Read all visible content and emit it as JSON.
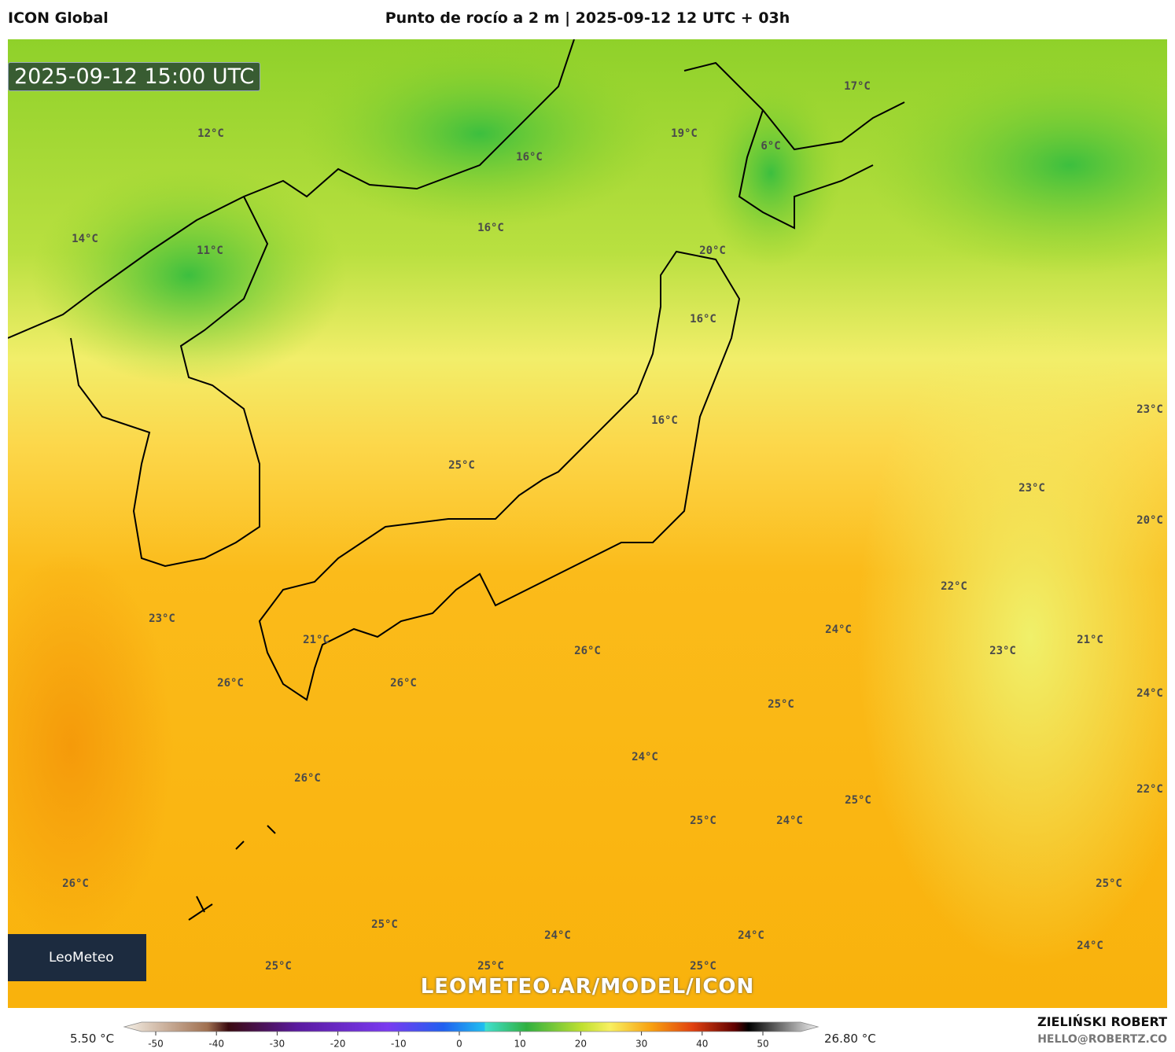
{
  "header": {
    "model": "ICON Global",
    "title": "Punto de rocío a 2 m | 2025-09-12 12 UTC + 03h"
  },
  "timestamp": "2025-09-12 15:00 UTC",
  "map_labels": [
    "17°C",
    "19°C",
    "6°C",
    "12°C",
    "16°C",
    "16°C",
    "14°C",
    "11°C",
    "20°C",
    "16°C",
    "23°C",
    "16°C",
    "25°C",
    "23°C",
    "20°C",
    "22°C",
    "23°C",
    "24°C",
    "21°C",
    "26°C",
    "23°C",
    "21°C",
    "26°C",
    "26°C",
    "24°C",
    "25°C",
    "24°C",
    "26°C",
    "22°C",
    "25°C",
    "25°C",
    "24°C",
    "26°C",
    "25°C",
    "25°C",
    "24°C",
    "24°C",
    "24°C",
    "25°C",
    "25°C",
    "25°C"
  ],
  "logo": "LeoMeteo",
  "watermark": "LEOMETEO.AR/MODEL/ICON",
  "colorbar": {
    "min_label": "5.50 °C",
    "max_label": "26.80 °C",
    "ticks": [
      -50,
      -40,
      -30,
      -20,
      -10,
      0,
      10,
      20,
      30,
      40,
      50
    ]
  },
  "credits": {
    "author": "ZIELIŃSKI ROBERT",
    "contact": "HELLO@ROBERTZ.CO"
  }
}
